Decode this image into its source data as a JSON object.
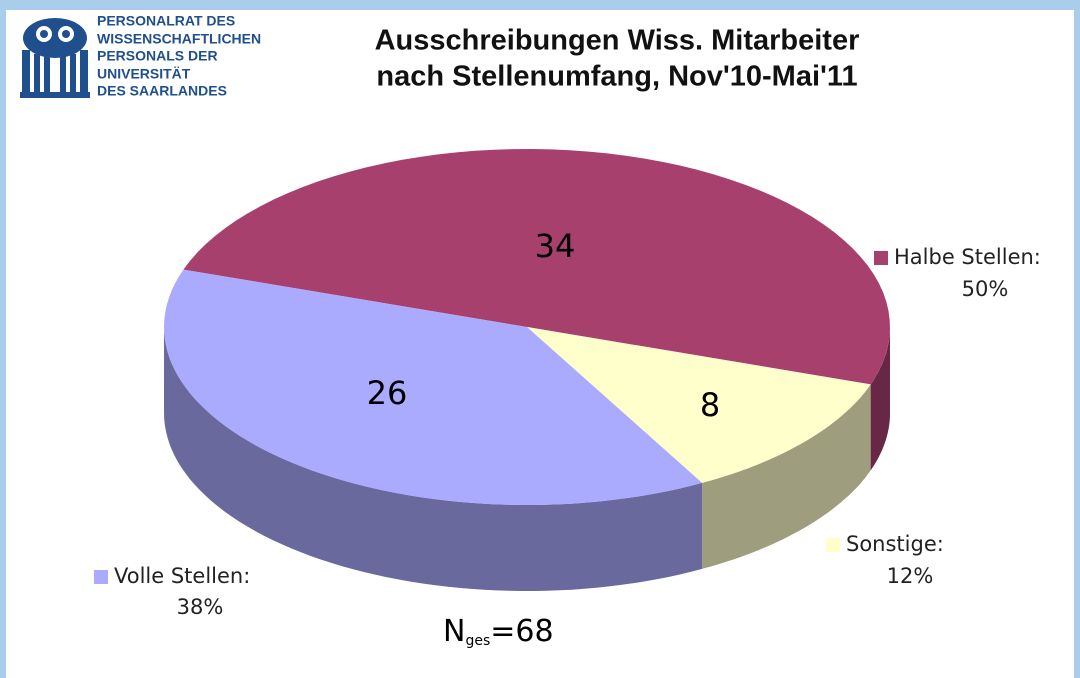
{
  "logo": {
    "lines": [
      "PERSONALRAT DES",
      "WISSENSCHAFTLICHEN",
      "PERSONALS DER",
      "UNIVERSITÄT",
      "DES SAARLANDES"
    ]
  },
  "chart_data": {
    "type": "pie3d",
    "title": [
      "Ausschreibungen Wiss. Mitarbeiter",
      "nach Stellenumfang, Nov'10-Mai'11"
    ],
    "categories": [
      "Halbe Stellen:",
      "Sonstige:",
      "Volle Stellen:"
    ],
    "values": [
      34,
      8,
      26
    ],
    "percent_labels": [
      "50%",
      "12%",
      "38%"
    ],
    "colors": [
      "#a8406e",
      "#ffffcc",
      "#aaaaff"
    ],
    "annotation": {
      "main": "N",
      "sub": "ges",
      "rest": "=68"
    }
  }
}
